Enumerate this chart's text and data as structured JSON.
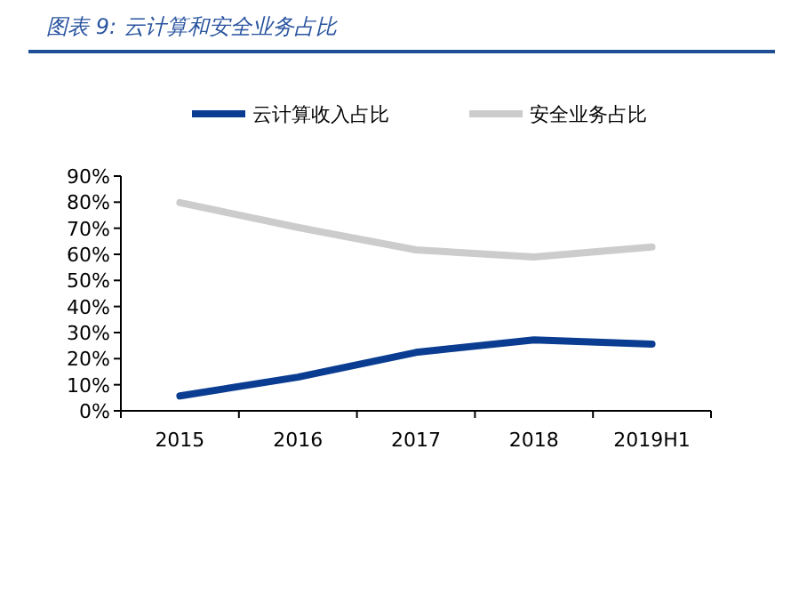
{
  "chart_data": {
    "type": "line",
    "title": "图表 9:  云计算和安全业务占比",
    "categories": [
      "2015",
      "2016",
      "2017",
      "2018",
      "2019H1"
    ],
    "series": [
      {
        "name": "云计算收入占比",
        "color": "#0a3d91",
        "values": [
          5.7,
          12.9,
          22.4,
          27.2,
          25.6
        ]
      },
      {
        "name": "安全业务占比",
        "color": "#cccccc",
        "values": [
          79.8,
          70.3,
          61.7,
          59.0,
          62.8
        ]
      }
    ],
    "ylim": [
      0,
      90
    ],
    "yticks": [
      {
        "value": 0,
        "label": "0%"
      },
      {
        "value": 10,
        "label": "10%"
      },
      {
        "value": 20,
        "label": "20%"
      },
      {
        "value": 30,
        "label": "30%"
      },
      {
        "value": 40,
        "label": "40%"
      },
      {
        "value": 50,
        "label": "50%"
      },
      {
        "value": 60,
        "label": "60%"
      },
      {
        "value": 70,
        "label": "70%"
      },
      {
        "value": 80,
        "label": "80%"
      },
      {
        "value": 90,
        "label": "90%"
      }
    ],
    "legend": "top",
    "grid": false,
    "marker": "none",
    "line_style": "solid"
  }
}
